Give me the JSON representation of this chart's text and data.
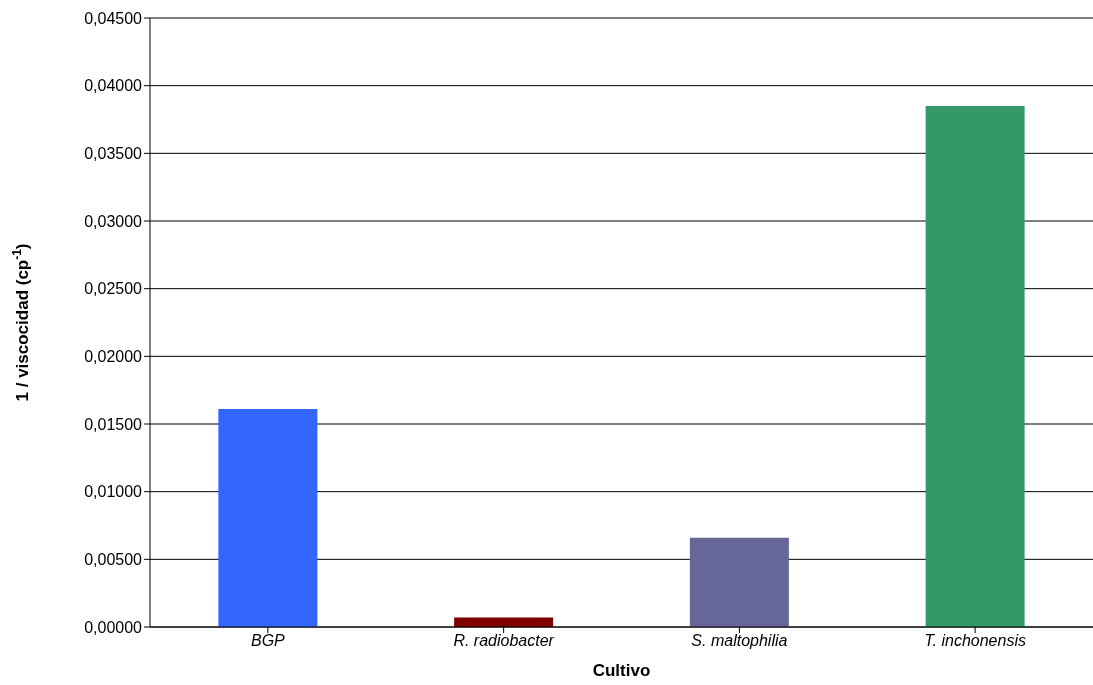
{
  "chart_data": {
    "type": "bar",
    "xlabel": "Cultivo",
    "ylabel": "1  / viscocidad (cp$^{-1}$)",
    "categories": [
      "BGP",
      "R. radiobacter",
      "S. maltophilia",
      "T. inchonensis"
    ],
    "values": [
      0.0161,
      0.0007,
      0.0066,
      0.0385
    ],
    "colors": [
      "#3366ff",
      "#800000",
      "#666699",
      "#339966"
    ],
    "ylim": [
      0,
      0.045
    ],
    "yticks": [
      {
        "value": 0,
        "label": "0,00000"
      },
      {
        "value": 0.005,
        "label": "0,00500"
      },
      {
        "value": 0.01,
        "label": "0,01000"
      },
      {
        "value": 0.015,
        "label": "0,01500"
      },
      {
        "value": 0.02,
        "label": "0,02000"
      },
      {
        "value": 0.025,
        "label": "0,02500"
      },
      {
        "value": 0.03,
        "label": "0,03000"
      },
      {
        "value": 0.035,
        "label": "0,03500"
      },
      {
        "value": 0.04,
        "label": "0,04000"
      },
      {
        "value": 0.045,
        "label": "0,04500"
      }
    ],
    "grid": "y",
    "legend": false
  }
}
